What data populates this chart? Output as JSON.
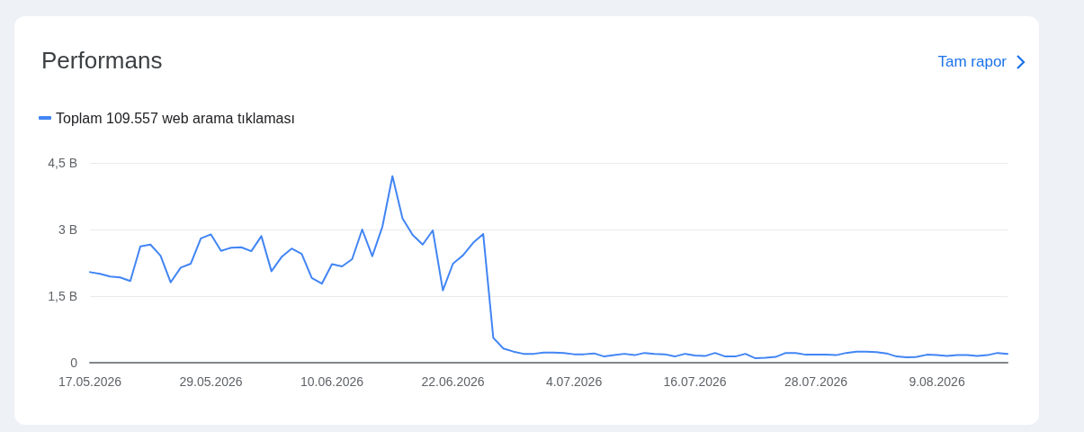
{
  "chart_data": {
    "type": "line",
    "title": "Performans",
    "annotations": [
      "Tam rapor"
    ],
    "legend": "top left",
    "grid": "y",
    "marker": "none",
    "line_style": "solid",
    "x": [
      "2026-05-17",
      "2026-05-18",
      "2026-05-19",
      "2026-05-20",
      "2026-05-21",
      "2026-05-22",
      "2026-05-23",
      "2026-05-24",
      "2026-05-25",
      "2026-05-26",
      "2026-05-27",
      "2026-05-28",
      "2026-05-29",
      "2026-05-30",
      "2026-05-31",
      "2026-06-01",
      "2026-06-02",
      "2026-06-03",
      "2026-06-04",
      "2026-06-05",
      "2026-06-06",
      "2026-06-07",
      "2026-06-08",
      "2026-06-09",
      "2026-06-10",
      "2026-06-11",
      "2026-06-12",
      "2026-06-13",
      "2026-06-14",
      "2026-06-15",
      "2026-06-16",
      "2026-06-17",
      "2026-06-18",
      "2026-06-19",
      "2026-06-20",
      "2026-06-21",
      "2026-06-22",
      "2026-06-23",
      "2026-06-24",
      "2026-06-25",
      "2026-06-26",
      "2026-06-27",
      "2026-06-28",
      "2026-06-29",
      "2026-06-30",
      "2026-07-01",
      "2026-07-02",
      "2026-07-03",
      "2026-07-04",
      "2026-07-05",
      "2026-07-06",
      "2026-07-07",
      "2026-07-08",
      "2026-07-09",
      "2026-07-10",
      "2026-07-11",
      "2026-07-12",
      "2026-07-13",
      "2026-07-14",
      "2026-07-15",
      "2026-07-16",
      "2026-07-17",
      "2026-07-18",
      "2026-07-19",
      "2026-07-20",
      "2026-07-21",
      "2026-07-22",
      "2026-07-23",
      "2026-07-24",
      "2026-07-25",
      "2026-07-26",
      "2026-07-27",
      "2026-07-28",
      "2026-07-29",
      "2026-07-30",
      "2026-07-31",
      "2026-08-01",
      "2026-08-02",
      "2026-08-03",
      "2026-08-04",
      "2026-08-05",
      "2026-08-06",
      "2026-08-07",
      "2026-08-08",
      "2026-08-09",
      "2026-08-10",
      "2026-08-11",
      "2026-08-12",
      "2026-08-13",
      "2026-08-14",
      "2026-08-15",
      "2026-08-16"
    ],
    "series": [
      {
        "name": "Toplam 109.557 web arama tıklaması",
        "color": "#4285f4",
        "values": [
          2.04,
          2.0,
          1.94,
          1.92,
          1.84,
          2.62,
          2.66,
          2.41,
          1.81,
          2.14,
          2.23,
          2.8,
          2.89,
          2.52,
          2.59,
          2.6,
          2.51,
          2.85,
          2.06,
          2.38,
          2.57,
          2.45,
          1.91,
          1.78,
          2.22,
          2.17,
          2.33,
          3.0,
          2.4,
          3.06,
          4.2,
          3.25,
          2.88,
          2.66,
          2.98,
          1.63,
          2.23,
          2.42,
          2.7,
          2.9,
          0.56,
          0.32,
          0.25,
          0.2,
          0.2,
          0.23,
          0.23,
          0.22,
          0.19,
          0.19,
          0.21,
          0.14,
          0.17,
          0.2,
          0.17,
          0.22,
          0.2,
          0.19,
          0.14,
          0.2,
          0.16,
          0.15,
          0.22,
          0.14,
          0.14,
          0.2,
          0.1,
          0.11,
          0.13,
          0.22,
          0.22,
          0.18,
          0.18,
          0.18,
          0.17,
          0.22,
          0.25,
          0.25,
          0.24,
          0.21,
          0.14,
          0.12,
          0.13,
          0.18,
          0.17,
          0.15,
          0.17,
          0.17,
          0.15,
          0.17,
          0.22,
          0.2
        ]
      }
    ],
    "xlim": [
      "2026-05-17",
      "2026-08-16"
    ],
    "xticks": [
      {
        "value": "2026-05-17",
        "label": "17.05.2026"
      },
      {
        "value": "2026-05-29",
        "label": "29.05.2026"
      },
      {
        "value": "2026-06-10",
        "label": "10.06.2026"
      },
      {
        "value": "2026-06-22",
        "label": "22.06.2026"
      },
      {
        "value": "2026-07-04",
        "label": "4.07.2026"
      },
      {
        "value": "2026-07-16",
        "label": "16.07.2026"
      },
      {
        "value": "2026-07-28",
        "label": "28.07.2026"
      },
      {
        "value": "2026-08-09",
        "label": "9.08.2026"
      }
    ],
    "ylim": [
      0,
      4.5
    ],
    "yticks": [
      0,
      {
        "value": 1.5,
        "label": "1,5 B"
      },
      {
        "value": 3,
        "label": "3 B"
      },
      {
        "value": 4.5,
        "label": "4,5 B"
      }
    ]
  }
}
